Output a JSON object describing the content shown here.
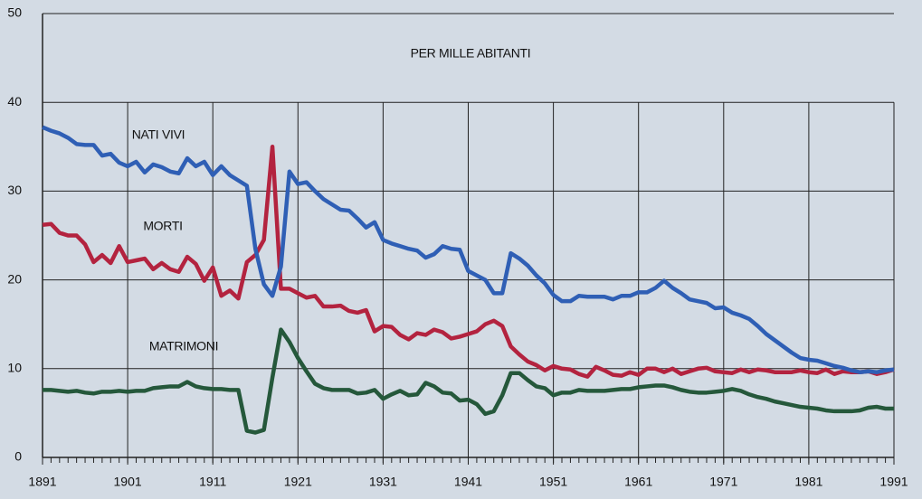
{
  "chart_data": {
    "type": "line",
    "subtitle": "PER MILLE ABITANTI",
    "x": [
      1891,
      1892,
      1893,
      1894,
      1895,
      1896,
      1897,
      1898,
      1899,
      1900,
      1901,
      1902,
      1903,
      1904,
      1905,
      1906,
      1907,
      1908,
      1909,
      1910,
      1911,
      1912,
      1913,
      1914,
      1915,
      1916,
      1917,
      1918,
      1919,
      1920,
      1921,
      1922,
      1923,
      1924,
      1925,
      1926,
      1927,
      1928,
      1929,
      1930,
      1931,
      1932,
      1933,
      1934,
      1935,
      1936,
      1937,
      1938,
      1939,
      1940,
      1941,
      1942,
      1943,
      1944,
      1945,
      1946,
      1947,
      1948,
      1949,
      1950,
      1951,
      1952,
      1953,
      1954,
      1955,
      1956,
      1957,
      1958,
      1959,
      1960,
      1961,
      1962,
      1963,
      1964,
      1965,
      1966,
      1967,
      1968,
      1969,
      1970,
      1971,
      1972,
      1973,
      1974,
      1975,
      1976,
      1977,
      1978,
      1979,
      1980,
      1981,
      1982,
      1983,
      1984,
      1985,
      1986,
      1987,
      1988,
      1989,
      1990,
      1991
    ],
    "series": [
      {
        "name": "NATI VIVI",
        "color": "#2f5fb5",
        "values": [
          37.2,
          36.8,
          36.5,
          36,
          35.3,
          35.2,
          35.2,
          34,
          34.2,
          33.2,
          32.8,
          33.3,
          32.1,
          33,
          32.7,
          32.2,
          32,
          33.7,
          32.8,
          33.3,
          31.8,
          32.8,
          31.8,
          31.2,
          30.6,
          23.5,
          19.5,
          18.2,
          21.5,
          32.2,
          30.8,
          31,
          30,
          29.1,
          28.5,
          27.9,
          27.8,
          26.9,
          25.9,
          26.5,
          24.5,
          24.1,
          23.8,
          23.5,
          23.3,
          22.5,
          22.9,
          23.8,
          23.5,
          23.4,
          21,
          20.5,
          20,
          18.5,
          18.5,
          23,
          22.4,
          21.6,
          20.5,
          19.6,
          18.3,
          17.6,
          17.6,
          18.2,
          18.1,
          18.1,
          18.1,
          17.8,
          18.2,
          18.2,
          18.6,
          18.6,
          19.1,
          19.9,
          19.1,
          18.5,
          17.8,
          17.6,
          17.4,
          16.8,
          16.9,
          16.3,
          16,
          15.6,
          14.8,
          13.9,
          13.2,
          12.5,
          11.8,
          11.2,
          11,
          10.9,
          10.6,
          10.3,
          10.1,
          9.8,
          9.6,
          9.7,
          9.6,
          9.8,
          9.9
        ]
      },
      {
        "name": "MORTI",
        "color": "#b3233f",
        "values": [
          26.2,
          26.3,
          25.3,
          25,
          25,
          24,
          22,
          22.8,
          21.9,
          23.8,
          22,
          22.2,
          22.4,
          21.2,
          21.9,
          21.2,
          20.9,
          22.6,
          21.8,
          19.9,
          21.4,
          18.2,
          18.8,
          17.9,
          22,
          22.8,
          24.5,
          35,
          19,
          19,
          18.5,
          18,
          18.2,
          17,
          17,
          17.1,
          16.5,
          16.3,
          16.6,
          14.2,
          14.8,
          14.7,
          13.8,
          13.3,
          14,
          13.8,
          14.4,
          14.1,
          13.4,
          13.6,
          13.9,
          14.2,
          15,
          15.4,
          14.8,
          12.5,
          11.6,
          10.8,
          10.4,
          9.8,
          10.3,
          10,
          9.9,
          9.4,
          9.1,
          10.2,
          9.8,
          9.3,
          9.2,
          9.6,
          9.3,
          10,
          10,
          9.6,
          10,
          9.4,
          9.7,
          10,
          10.1,
          9.7,
          9.6,
          9.5,
          9.9,
          9.6,
          9.9,
          9.8,
          9.6,
          9.6,
          9.6,
          9.8,
          9.6,
          9.5,
          9.9,
          9.4,
          9.7,
          9.6,
          9.6,
          9.7,
          9.4,
          9.6,
          9.9
        ]
      },
      {
        "name": "MATRIMONI",
        "color": "#25583b",
        "values": [
          7.6,
          7.6,
          7.5,
          7.4,
          7.5,
          7.3,
          7.2,
          7.4,
          7.4,
          7.5,
          7.4,
          7.5,
          7.5,
          7.8,
          7.9,
          8,
          8,
          8.5,
          8,
          7.8,
          7.7,
          7.7,
          7.6,
          7.6,
          3,
          2.8,
          3.1,
          9,
          14.4,
          13,
          11.2,
          9.7,
          8.3,
          7.8,
          7.6,
          7.6,
          7.6,
          7.2,
          7.3,
          7.6,
          6.6,
          7.1,
          7.5,
          7,
          7.1,
          8.4,
          8,
          7.3,
          7.2,
          6.4,
          6.5,
          6,
          4.9,
          5.2,
          7,
          9.5,
          9.5,
          8.7,
          8,
          7.8,
          7,
          7.3,
          7.3,
          7.6,
          7.5,
          7.5,
          7.5,
          7.6,
          7.7,
          7.7,
          7.9,
          8,
          8.1,
          8.1,
          7.9,
          7.6,
          7.4,
          7.3,
          7.3,
          7.4,
          7.5,
          7.7,
          7.5,
          7.1,
          6.8,
          6.6,
          6.3,
          6.1,
          5.9,
          5.7,
          5.6,
          5.5,
          5.3,
          5.2,
          5.2,
          5.2,
          5.3,
          5.6,
          5.7,
          5.5,
          5.5
        ]
      }
    ],
    "xlim": [
      1891,
      1991
    ],
    "xticks": [
      1891,
      1901,
      1911,
      1921,
      1931,
      1941,
      1951,
      1961,
      1971,
      1981,
      1991
    ],
    "ylim": [
      0,
      50
    ],
    "yticks": [
      0,
      10,
      20,
      30,
      40,
      50
    ],
    "grid": true
  }
}
